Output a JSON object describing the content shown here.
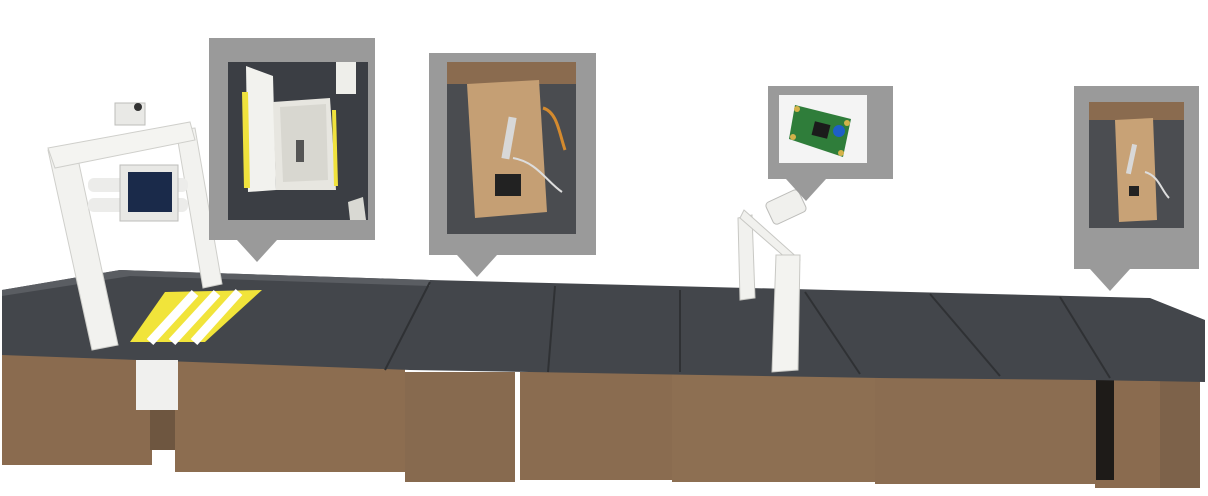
{
  "scene": {
    "description_label": "",
    "callouts": [
      {
        "id": "callout-1",
        "subject": "box-with-sensor"
      },
      {
        "id": "callout-2",
        "subject": "cardboard-panel-with-bracket"
      },
      {
        "id": "callout-3",
        "subject": "circuit-board"
      },
      {
        "id": "callout-4",
        "subject": "cardboard-panel-with-bracket-small"
      }
    ],
    "colors": {
      "callout_frame": "#9a9a9a",
      "track_surface": "#3f4247",
      "cardboard": "#8a6b4f",
      "stripe_yellow": "#f1e43a",
      "frame_white": "#f2f2ef",
      "pcb_green": "#2f7d3a"
    }
  }
}
